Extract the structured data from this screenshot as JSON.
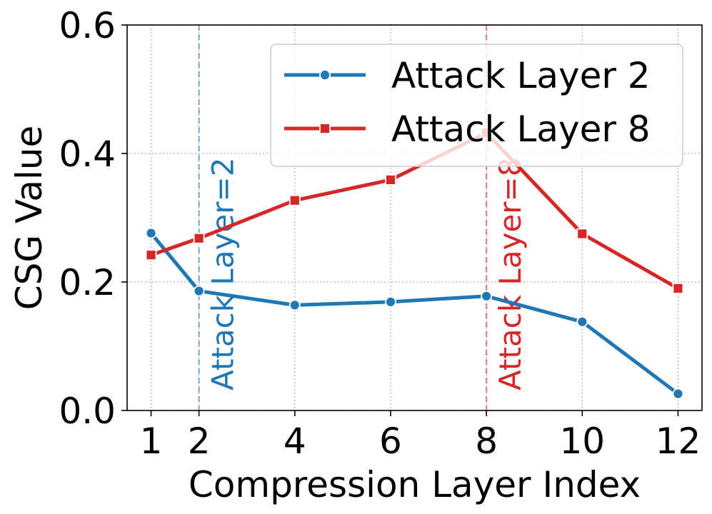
{
  "chart_data": {
    "type": "line",
    "title": "",
    "xlabel": "Compression Layer Index",
    "ylabel": "CSG Value",
    "x": [
      1,
      2,
      4,
      6,
      8,
      10,
      12
    ],
    "xticks": [
      "1",
      "2",
      "4",
      "6",
      "8",
      "10",
      "12"
    ],
    "xlim": [
      0.5,
      12.5
    ],
    "ylim": [
      0.0,
      0.6
    ],
    "yticks": [
      "0.0",
      "0.2",
      "0.4",
      "0.6"
    ],
    "grid": true,
    "legend_position": "top-right",
    "series": [
      {
        "name": "Attack Layer 2",
        "values": [
          0.276,
          0.186,
          0.164,
          0.169,
          0.178,
          0.138,
          0.026
        ],
        "color": "#1f77b4",
        "marker": "circle"
      },
      {
        "name": "Attack Layer 8",
        "values": [
          0.242,
          0.268,
          0.327,
          0.359,
          0.432,
          0.275,
          0.19
        ],
        "color": "#d62728",
        "marker": "square"
      }
    ],
    "annotations": [
      {
        "x": 2,
        "text": "Attack Layer=2",
        "color": "#1f77b4"
      },
      {
        "x": 8,
        "text": "Attack Layer=8",
        "color": "#d62728"
      }
    ]
  }
}
